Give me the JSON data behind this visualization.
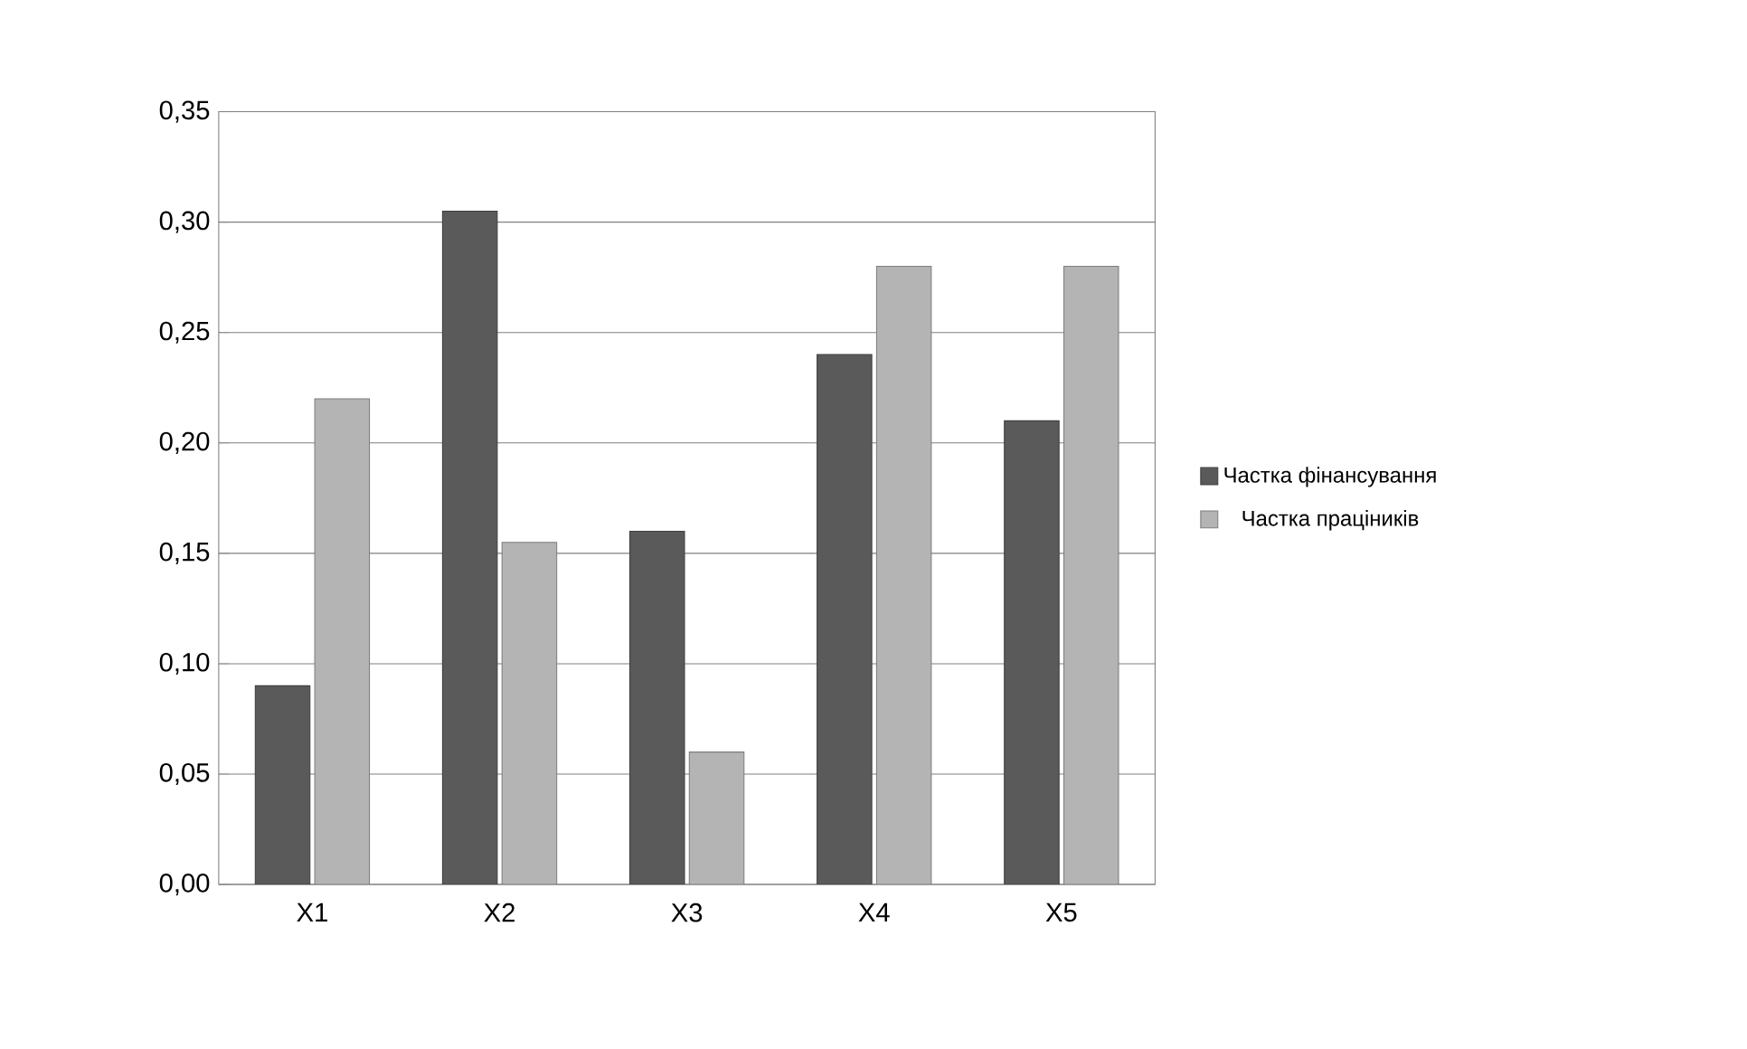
{
  "chart_data": {
    "type": "bar",
    "categories": [
      "X1",
      "X2",
      "X3",
      "X4",
      "X5"
    ],
    "series": [
      {
        "name": "Частка фінансування",
        "color": "#5a5a5a",
        "values": [
          0.09,
          0.305,
          0.16,
          0.24,
          0.21
        ]
      },
      {
        "name": "Частка праціників",
        "color": "#b4b4b4",
        "values": [
          0.22,
          0.155,
          0.06,
          0.28,
          0.28
        ]
      }
    ],
    "ylim": [
      0,
      0.35
    ],
    "yticks": [
      {
        "value": 0,
        "label": "0,00"
      },
      {
        "value": 0.05,
        "label": "0,05"
      },
      {
        "value": 0.1,
        "label": "0,10"
      },
      {
        "value": 0.15,
        "label": "0,15"
      },
      {
        "value": 0.2,
        "label": "0,20"
      },
      {
        "value": 0.25,
        "label": "0,25"
      },
      {
        "value": 0.3,
        "label": "0,30"
      },
      {
        "value": 0.35,
        "label": "0,35"
      }
    ],
    "grid": "y",
    "legend": "right"
  }
}
